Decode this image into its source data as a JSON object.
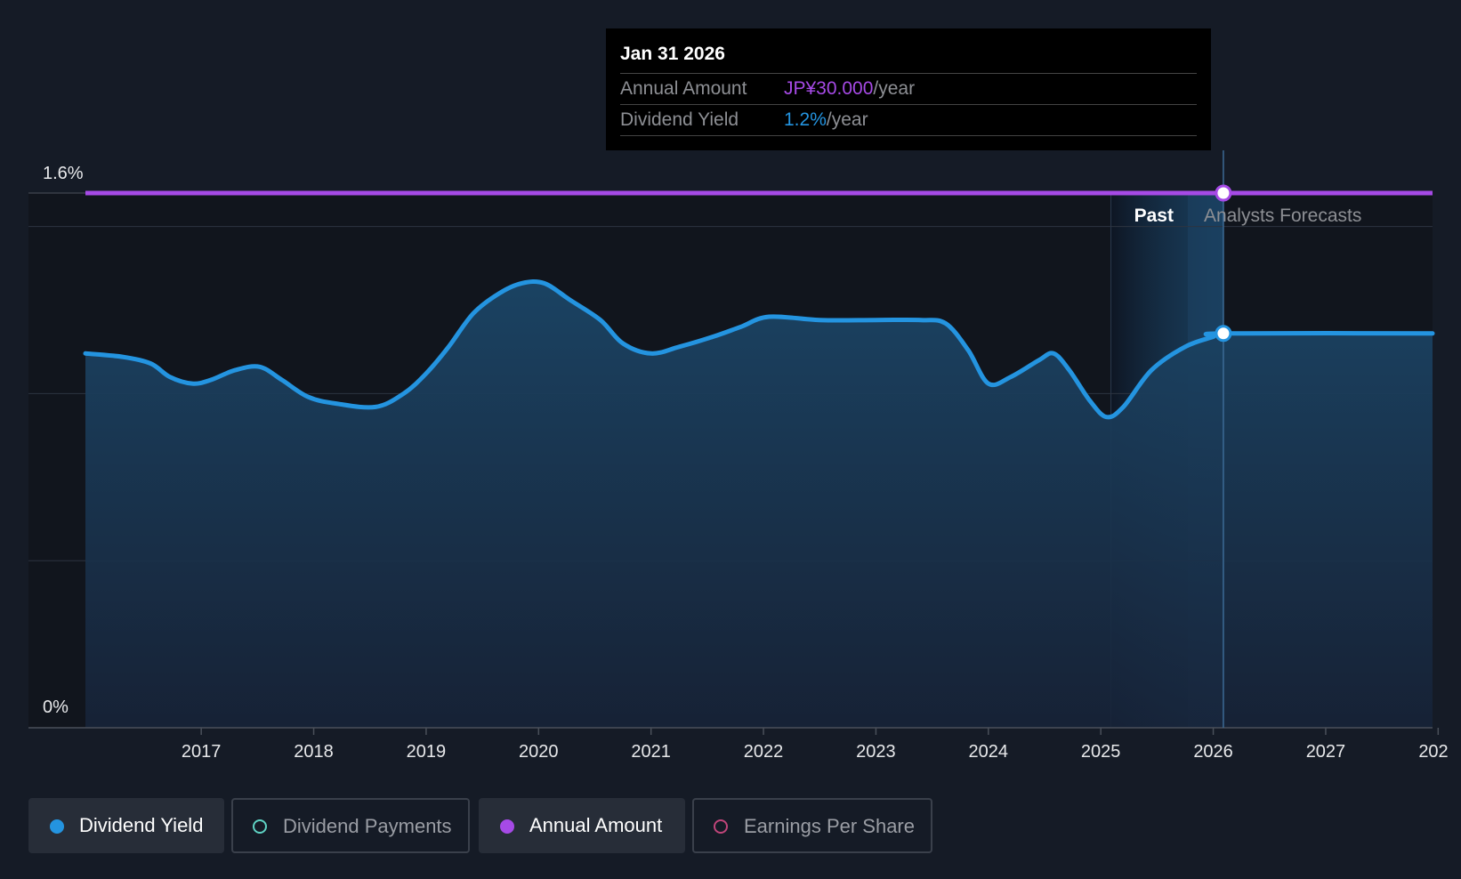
{
  "chart_data": {
    "type": "area",
    "title": "",
    "y_axis": {
      "min_label": "0%",
      "max_label": "1.6%",
      "ylim": [
        0,
        1.6
      ],
      "unit": "%"
    },
    "x_ticks": [
      "2017",
      "2018",
      "2019",
      "2020",
      "2021",
      "2022",
      "2023",
      "2024",
      "2025",
      "2026",
      "2027",
      "202"
    ],
    "x_range": [
      2015.45,
      2027.95
    ],
    "gridlines": [
      0.5,
      1.0,
      1.5
    ],
    "region_labels": {
      "past": "Past",
      "forecast": "Analysts Forecasts"
    },
    "past_region": [
      2025.09,
      2026.09
    ],
    "series": [
      {
        "name": "Dividend Yield",
        "color": "#2494e0",
        "points": [
          [
            2015.97,
            1.12
          ],
          [
            2016.3,
            1.11
          ],
          [
            2016.55,
            1.09
          ],
          [
            2016.72,
            1.05
          ],
          [
            2016.92,
            1.03
          ],
          [
            2017.08,
            1.04
          ],
          [
            2017.3,
            1.07
          ],
          [
            2017.52,
            1.08
          ],
          [
            2017.72,
            1.04
          ],
          [
            2017.95,
            0.99
          ],
          [
            2018.2,
            0.97
          ],
          [
            2018.55,
            0.96
          ],
          [
            2018.8,
            1.0
          ],
          [
            2019.0,
            1.06
          ],
          [
            2019.2,
            1.14
          ],
          [
            2019.42,
            1.24
          ],
          [
            2019.65,
            1.3
          ],
          [
            2019.85,
            1.33
          ],
          [
            2020.05,
            1.33
          ],
          [
            2020.28,
            1.28
          ],
          [
            2020.55,
            1.22
          ],
          [
            2020.75,
            1.15
          ],
          [
            2021.0,
            1.12
          ],
          [
            2021.25,
            1.14
          ],
          [
            2021.55,
            1.17
          ],
          [
            2021.8,
            1.2
          ],
          [
            2022.05,
            1.23
          ],
          [
            2022.5,
            1.22
          ],
          [
            2023.0,
            1.22
          ],
          [
            2023.4,
            1.22
          ],
          [
            2023.62,
            1.21
          ],
          [
            2023.82,
            1.13
          ],
          [
            2024.0,
            1.03
          ],
          [
            2024.2,
            1.05
          ],
          [
            2024.45,
            1.1
          ],
          [
            2024.58,
            1.12
          ],
          [
            2024.72,
            1.07
          ],
          [
            2024.9,
            0.98
          ],
          [
            2025.05,
            0.93
          ],
          [
            2025.2,
            0.96
          ],
          [
            2025.45,
            1.07
          ],
          [
            2025.75,
            1.14
          ],
          [
            2026.0,
            1.17
          ],
          [
            2026.09,
            1.18
          ],
          [
            2027.95,
            1.18
          ]
        ]
      },
      {
        "name": "Annual Amount",
        "color": "#a64ae6",
        "points": [
          [
            2015.97,
            1.6
          ],
          [
            2026.09,
            1.6
          ],
          [
            2027.95,
            1.6
          ]
        ]
      }
    ],
    "highlight": {
      "x": 2026.09,
      "yield": 1.18,
      "amount_level": 1.6
    }
  },
  "tooltip": {
    "date": "Jan 31 2026",
    "annual_amount_label": "Annual Amount",
    "annual_amount_value": "JP¥30.000",
    "annual_amount_unit": "/year",
    "dividend_yield_label": "Dividend Yield",
    "dividend_yield_value": "1.2%",
    "dividend_yield_unit": "/year"
  },
  "legend": [
    {
      "label": "Dividend Yield",
      "active": true,
      "color": "#2494e0",
      "filled": true
    },
    {
      "label": "Dividend Payments",
      "active": false,
      "color": "#5fd3c4",
      "filled": false
    },
    {
      "label": "Annual Amount",
      "active": true,
      "color": "#a64ae6",
      "filled": true
    },
    {
      "label": "Earnings Per Share",
      "active": false,
      "color": "#c0457a",
      "filled": false
    }
  ]
}
